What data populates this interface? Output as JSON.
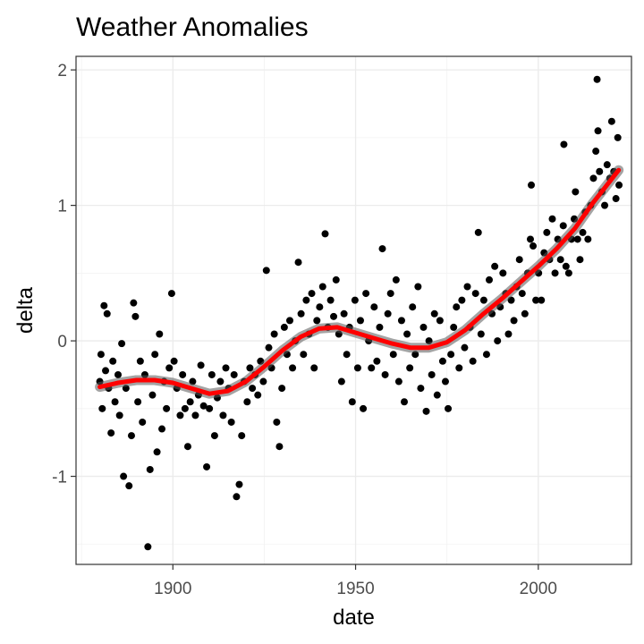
{
  "chart_data": {
    "type": "scatter",
    "title": "Weather Anomalies",
    "xlabel": "date",
    "ylabel": "delta",
    "x_range": [
      "1873-07-01",
      "2025-07-01"
    ],
    "ylim": [
      -1.65,
      2.1
    ],
    "x_ticks": [
      {
        "label": "1900",
        "value": "1900-01-01"
      },
      {
        "label": "1950",
        "value": "1950-01-01"
      },
      {
        "label": "2000",
        "value": "2000-01-01"
      }
    ],
    "x_minor_ticks": [
      "1875-01-01",
      "1925-01-01",
      "1975-01-01",
      "2025-01-01"
    ],
    "y_ticks": [
      -1,
      0,
      1,
      2
    ],
    "y_minor_ticks": [
      -1.5,
      -0.5,
      0.5,
      1.5
    ],
    "grid": true,
    "legend": "none",
    "series": [
      {
        "kind": "points",
        "color": "#000000",
        "points": [
          {
            "x": "1880-01-01",
            "y": -0.3
          },
          {
            "x": "1880-05-01",
            "y": -0.1
          },
          {
            "x": "1880-09-01",
            "y": -0.5
          },
          {
            "x": "1881-03-01",
            "y": 0.26
          },
          {
            "x": "1881-08-01",
            "y": -0.22
          },
          {
            "x": "1882-01-01",
            "y": 0.2
          },
          {
            "x": "1882-06-01",
            "y": -0.35
          },
          {
            "x": "1883-02-01",
            "y": -0.68
          },
          {
            "x": "1883-08-01",
            "y": -0.15
          },
          {
            "x": "1884-03-01",
            "y": -0.45
          },
          {
            "x": "1885-01-01",
            "y": -0.25
          },
          {
            "x": "1885-06-01",
            "y": -0.55
          },
          {
            "x": "1886-01-01",
            "y": -0.02
          },
          {
            "x": "1886-07-01",
            "y": -1.0
          },
          {
            "x": "1887-03-01",
            "y": -0.35
          },
          {
            "x": "1888-01-01",
            "y": -1.07
          },
          {
            "x": "1888-09-01",
            "y": -0.7
          },
          {
            "x": "1889-04-01",
            "y": 0.28
          },
          {
            "x": "1889-10-01",
            "y": 0.18
          },
          {
            "x": "1890-06-01",
            "y": -0.45
          },
          {
            "x": "1891-02-01",
            "y": -0.15
          },
          {
            "x": "1891-09-01",
            "y": -0.6
          },
          {
            "x": "1892-05-01",
            "y": -0.25
          },
          {
            "x": "1893-03-01",
            "y": -1.52
          },
          {
            "x": "1893-10-01",
            "y": -0.95
          },
          {
            "x": "1894-06-01",
            "y": -0.4
          },
          {
            "x": "1895-02-01",
            "y": -0.1
          },
          {
            "x": "1895-09-01",
            "y": -0.82
          },
          {
            "x": "1896-05-01",
            "y": 0.05
          },
          {
            "x": "1897-01-01",
            "y": -0.65
          },
          {
            "x": "1897-08-01",
            "y": -0.3
          },
          {
            "x": "1898-04-01",
            "y": -0.5
          },
          {
            "x": "1899-01-01",
            "y": -0.2
          },
          {
            "x": "1899-09-01",
            "y": 0.35
          },
          {
            "x": "1900-05-01",
            "y": -0.15
          },
          {
            "x": "1901-02-01",
            "y": -0.35
          },
          {
            "x": "1902-01-01",
            "y": -0.55
          },
          {
            "x": "1902-09-01",
            "y": -0.25
          },
          {
            "x": "1903-05-01",
            "y": -0.5
          },
          {
            "x": "1904-02-01",
            "y": -0.78
          },
          {
            "x": "1904-10-01",
            "y": -0.45
          },
          {
            "x": "1905-06-01",
            "y": -0.3
          },
          {
            "x": "1906-03-01",
            "y": -0.55
          },
          {
            "x": "1907-01-01",
            "y": -0.4
          },
          {
            "x": "1907-09-01",
            "y": -0.18
          },
          {
            "x": "1908-06-01",
            "y": -0.48
          },
          {
            "x": "1909-04-01",
            "y": -0.93
          },
          {
            "x": "1910-01-01",
            "y": -0.5
          },
          {
            "x": "1910-09-01",
            "y": -0.25
          },
          {
            "x": "1911-06-01",
            "y": -0.7
          },
          {
            "x": "1912-03-01",
            "y": -0.42
          },
          {
            "x": "1913-01-01",
            "y": -0.3
          },
          {
            "x": "1913-10-01",
            "y": -0.55
          },
          {
            "x": "1914-07-01",
            "y": -0.2
          },
          {
            "x": "1915-04-01",
            "y": -0.35
          },
          {
            "x": "1916-01-01",
            "y": -0.6
          },
          {
            "x": "1916-10-01",
            "y": -0.25
          },
          {
            "x": "1917-06-01",
            "y": -1.15
          },
          {
            "x": "1918-03-01",
            "y": -1.06
          },
          {
            "x": "1918-11-01",
            "y": -0.7
          },
          {
            "x": "1919-07-01",
            "y": -0.3
          },
          {
            "x": "1920-05-01",
            "y": -0.45
          },
          {
            "x": "1921-02-01",
            "y": -0.2
          },
          {
            "x": "1921-10-01",
            "y": -0.35
          },
          {
            "x": "1922-07-01",
            "y": -0.25
          },
          {
            "x": "1923-04-01",
            "y": -0.4
          },
          {
            "x": "1924-01-01",
            "y": -0.15
          },
          {
            "x": "1924-10-01",
            "y": -0.3
          },
          {
            "x": "1925-08-01",
            "y": 0.52
          },
          {
            "x": "1926-04-01",
            "y": -0.05
          },
          {
            "x": "1927-01-01",
            "y": -0.2
          },
          {
            "x": "1927-10-01",
            "y": 0.05
          },
          {
            "x": "1928-06-01",
            "y": -0.6
          },
          {
            "x": "1929-03-01",
            "y": -0.78
          },
          {
            "x": "1929-11-01",
            "y": -0.35
          },
          {
            "x": "1930-07-01",
            "y": 0.1
          },
          {
            "x": "1931-04-01",
            "y": -0.1
          },
          {
            "x": "1932-01-01",
            "y": 0.15
          },
          {
            "x": "1932-10-01",
            "y": -0.2
          },
          {
            "x": "1933-07-01",
            "y": 0.0
          },
          {
            "x": "1934-05-01",
            "y": 0.58
          },
          {
            "x": "1935-02-01",
            "y": 0.2
          },
          {
            "x": "1935-10-01",
            "y": -0.1
          },
          {
            "x": "1936-07-01",
            "y": 0.3
          },
          {
            "x": "1937-04-01",
            "y": 0.05
          },
          {
            "x": "1938-01-01",
            "y": 0.35
          },
          {
            "x": "1938-09-01",
            "y": -0.2
          },
          {
            "x": "1939-06-01",
            "y": 0.15
          },
          {
            "x": "1940-03-01",
            "y": 0.25
          },
          {
            "x": "1941-01-01",
            "y": 0.4
          },
          {
            "x": "1941-09-01",
            "y": 0.79
          },
          {
            "x": "1942-06-01",
            "y": 0.1
          },
          {
            "x": "1943-03-01",
            "y": 0.3
          },
          {
            "x": "1944-01-01",
            "y": 0.18
          },
          {
            "x": "1944-09-01",
            "y": 0.45
          },
          {
            "x": "1945-06-01",
            "y": 0.05
          },
          {
            "x": "1946-03-01",
            "y": -0.3
          },
          {
            "x": "1946-11-01",
            "y": 0.2
          },
          {
            "x": "1947-08-01",
            "y": -0.1
          },
          {
            "x": "1948-05-01",
            "y": 0.1
          },
          {
            "x": "1949-02-01",
            "y": -0.45
          },
          {
            "x": "1949-11-01",
            "y": 0.3
          },
          {
            "x": "1950-08-01",
            "y": -0.2
          },
          {
            "x": "1951-05-01",
            "y": 0.15
          },
          {
            "x": "1952-02-01",
            "y": -0.5
          },
          {
            "x": "1952-11-01",
            "y": 0.35
          },
          {
            "x": "1953-08-01",
            "y": 0.0
          },
          {
            "x": "1954-05-01",
            "y": -0.2
          },
          {
            "x": "1955-02-01",
            "y": 0.25
          },
          {
            "x": "1955-11-01",
            "y": -0.15
          },
          {
            "x": "1956-08-01",
            "y": 0.1
          },
          {
            "x": "1957-05-01",
            "y": 0.68
          },
          {
            "x": "1958-02-01",
            "y": -0.25
          },
          {
            "x": "1958-11-01",
            "y": 0.2
          },
          {
            "x": "1959-08-01",
            "y": 0.35
          },
          {
            "x": "1960-05-01",
            "y": -0.1
          },
          {
            "x": "1961-02-01",
            "y": 0.45
          },
          {
            "x": "1961-11-01",
            "y": -0.3
          },
          {
            "x": "1962-08-01",
            "y": 0.15
          },
          {
            "x": "1963-05-01",
            "y": -0.45
          },
          {
            "x": "1964-02-01",
            "y": 0.05
          },
          {
            "x": "1964-11-01",
            "y": -0.2
          },
          {
            "x": "1965-08-01",
            "y": 0.25
          },
          {
            "x": "1966-05-01",
            "y": -0.1
          },
          {
            "x": "1967-02-01",
            "y": 0.4
          },
          {
            "x": "1967-11-01",
            "y": -0.35
          },
          {
            "x": "1968-08-01",
            "y": 0.1
          },
          {
            "x": "1969-05-01",
            "y": -0.52
          },
          {
            "x": "1970-02-01",
            "y": 0.0
          },
          {
            "x": "1970-11-01",
            "y": -0.25
          },
          {
            "x": "1971-08-01",
            "y": 0.2
          },
          {
            "x": "1972-05-01",
            "y": -0.4
          },
          {
            "x": "1973-02-01",
            "y": 0.15
          },
          {
            "x": "1973-11-01",
            "y": -0.15
          },
          {
            "x": "1974-08-01",
            "y": -0.3
          },
          {
            "x": "1975-05-01",
            "y": -0.5
          },
          {
            "x": "1976-02-01",
            "y": -0.1
          },
          {
            "x": "1976-11-01",
            "y": 0.1
          },
          {
            "x": "1977-08-01",
            "y": 0.25
          },
          {
            "x": "1978-05-01",
            "y": -0.2
          },
          {
            "x": "1979-02-01",
            "y": 0.3
          },
          {
            "x": "1979-11-01",
            "y": -0.05
          },
          {
            "x": "1980-08-01",
            "y": 0.4
          },
          {
            "x": "1981-05-01",
            "y": 0.1
          },
          {
            "x": "1982-02-01",
            "y": -0.15
          },
          {
            "x": "1982-11-01",
            "y": 0.35
          },
          {
            "x": "1983-08-01",
            "y": 0.8
          },
          {
            "x": "1984-05-01",
            "y": 0.05
          },
          {
            "x": "1985-02-01",
            "y": 0.3
          },
          {
            "x": "1985-11-01",
            "y": -0.1
          },
          {
            "x": "1986-08-01",
            "y": 0.45
          },
          {
            "x": "1987-05-01",
            "y": 0.2
          },
          {
            "x": "1988-02-01",
            "y": 0.55
          },
          {
            "x": "1988-11-01",
            "y": 0.0
          },
          {
            "x": "1989-08-01",
            "y": 0.25
          },
          {
            "x": "1990-05-01",
            "y": 0.5
          },
          {
            "x": "1991-02-01",
            "y": 0.35
          },
          {
            "x": "1991-11-01",
            "y": 0.05
          },
          {
            "x": "1992-08-01",
            "y": 0.3
          },
          {
            "x": "1993-05-01",
            "y": 0.15
          },
          {
            "x": "1994-02-01",
            "y": 0.4
          },
          {
            "x": "1994-11-01",
            "y": 0.6
          },
          {
            "x": "1995-08-01",
            "y": 0.35
          },
          {
            "x": "1996-05-01",
            "y": 0.2
          },
          {
            "x": "1997-02-01",
            "y": 0.5
          },
          {
            "x": "1997-11-01",
            "y": 0.75
          },
          {
            "x": "1998-02-01",
            "y": 1.15
          },
          {
            "x": "1998-08-01",
            "y": 0.7
          },
          {
            "x": "1999-05-01",
            "y": 0.3
          },
          {
            "x": "2000-02-01",
            "y": 0.5
          },
          {
            "x": "2000-11-01",
            "y": 0.3
          },
          {
            "x": "2001-08-01",
            "y": 0.65
          },
          {
            "x": "2002-05-01",
            "y": 0.8
          },
          {
            "x": "2003-02-01",
            "y": 0.6
          },
          {
            "x": "2003-11-01",
            "y": 0.9
          },
          {
            "x": "2004-08-01",
            "y": 0.5
          },
          {
            "x": "2005-05-01",
            "y": 0.75
          },
          {
            "x": "2006-02-01",
            "y": 0.6
          },
          {
            "x": "2006-11-01",
            "y": 0.85
          },
          {
            "x": "2007-01-01",
            "y": 1.45
          },
          {
            "x": "2007-08-01",
            "y": 0.55
          },
          {
            "x": "2008-05-01",
            "y": 0.5
          },
          {
            "x": "2009-02-01",
            "y": 0.75
          },
          {
            "x": "2009-11-01",
            "y": 0.9
          },
          {
            "x": "2010-03-01",
            "y": 1.1
          },
          {
            "x": "2010-10-01",
            "y": 0.75
          },
          {
            "x": "2011-06-01",
            "y": 0.6
          },
          {
            "x": "2012-03-01",
            "y": 0.8
          },
          {
            "x": "2012-11-01",
            "y": 0.95
          },
          {
            "x": "2013-08-01",
            "y": 0.75
          },
          {
            "x": "2014-05-01",
            "y": 1.0
          },
          {
            "x": "2015-02-01",
            "y": 1.2
          },
          {
            "x": "2015-10-01",
            "y": 1.4
          },
          {
            "x": "2016-02-01",
            "y": 1.93
          },
          {
            "x": "2016-05-01",
            "y": 1.55
          },
          {
            "x": "2016-10-01",
            "y": 1.25
          },
          {
            "x": "2017-06-01",
            "y": 1.1
          },
          {
            "x": "2018-03-01",
            "y": 1.0
          },
          {
            "x": "2018-11-01",
            "y": 1.3
          },
          {
            "x": "2019-08-01",
            "y": 1.2
          },
          {
            "x": "2020-02-01",
            "y": 1.62
          },
          {
            "x": "2020-09-01",
            "y": 1.25
          },
          {
            "x": "2021-04-01",
            "y": 1.05
          },
          {
            "x": "2021-10-01",
            "y": 1.5
          },
          {
            "x": "2022-02-01",
            "y": 1.15
          }
        ]
      },
      {
        "kind": "smooth",
        "color": "#ff0000",
        "points": [
          {
            "x": "1880-01-01",
            "y": -0.34
          },
          {
            "x": "1885-01-01",
            "y": -0.31
          },
          {
            "x": "1890-01-01",
            "y": -0.29
          },
          {
            "x": "1895-01-01",
            "y": -0.29
          },
          {
            "x": "1900-01-01",
            "y": -0.31
          },
          {
            "x": "1905-01-01",
            "y": -0.35
          },
          {
            "x": "1910-01-01",
            "y": -0.39
          },
          {
            "x": "1915-01-01",
            "y": -0.37
          },
          {
            "x": "1920-01-01",
            "y": -0.3
          },
          {
            "x": "1925-01-01",
            "y": -0.19
          },
          {
            "x": "1930-01-01",
            "y": -0.07
          },
          {
            "x": "1935-01-01",
            "y": 0.03
          },
          {
            "x": "1940-01-01",
            "y": 0.09
          },
          {
            "x": "1945-01-01",
            "y": 0.1
          },
          {
            "x": "1950-01-01",
            "y": 0.06
          },
          {
            "x": "1955-01-01",
            "y": 0.02
          },
          {
            "x": "1960-01-01",
            "y": -0.02
          },
          {
            "x": "1965-01-01",
            "y": -0.05
          },
          {
            "x": "1970-01-01",
            "y": -0.05
          },
          {
            "x": "1975-01-01",
            "y": -0.01
          },
          {
            "x": "1980-01-01",
            "y": 0.08
          },
          {
            "x": "1985-01-01",
            "y": 0.2
          },
          {
            "x": "1990-01-01",
            "y": 0.31
          },
          {
            "x": "1995-01-01",
            "y": 0.43
          },
          {
            "x": "2000-01-01",
            "y": 0.55
          },
          {
            "x": "2005-01-01",
            "y": 0.68
          },
          {
            "x": "2010-01-01",
            "y": 0.83
          },
          {
            "x": "2015-01-01",
            "y": 1.02
          },
          {
            "x": "2022-01-01",
            "y": 1.26
          }
        ]
      }
    ]
  }
}
